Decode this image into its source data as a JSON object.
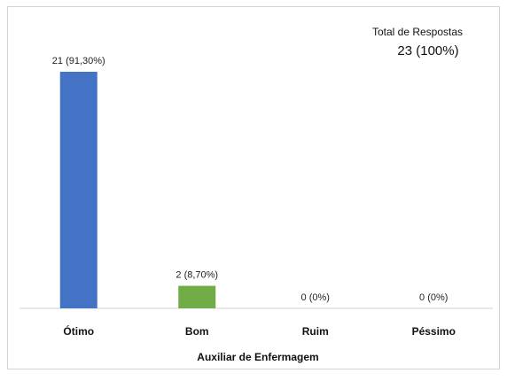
{
  "total": {
    "label": "Total de Respostas",
    "value": "23 (100%)"
  },
  "chart_data": {
    "type": "bar",
    "xlabel": "Auxiliar de Enfermagem",
    "ylabel": "",
    "categories": [
      "Ótimo",
      "Bom",
      "Ruim",
      "Péssimo"
    ],
    "values": [
      21,
      2,
      0,
      0
    ],
    "data_labels": [
      "21 (91,30%)",
      "2 (8,70%)",
      "0 (0%)",
      "0 (0%)"
    ],
    "colors": [
      "#4472c4",
      "#70ad47",
      "#a5a5a5",
      "#ffc000"
    ],
    "ylim": [
      0,
      21
    ],
    "grid": false,
    "legend": "none"
  }
}
